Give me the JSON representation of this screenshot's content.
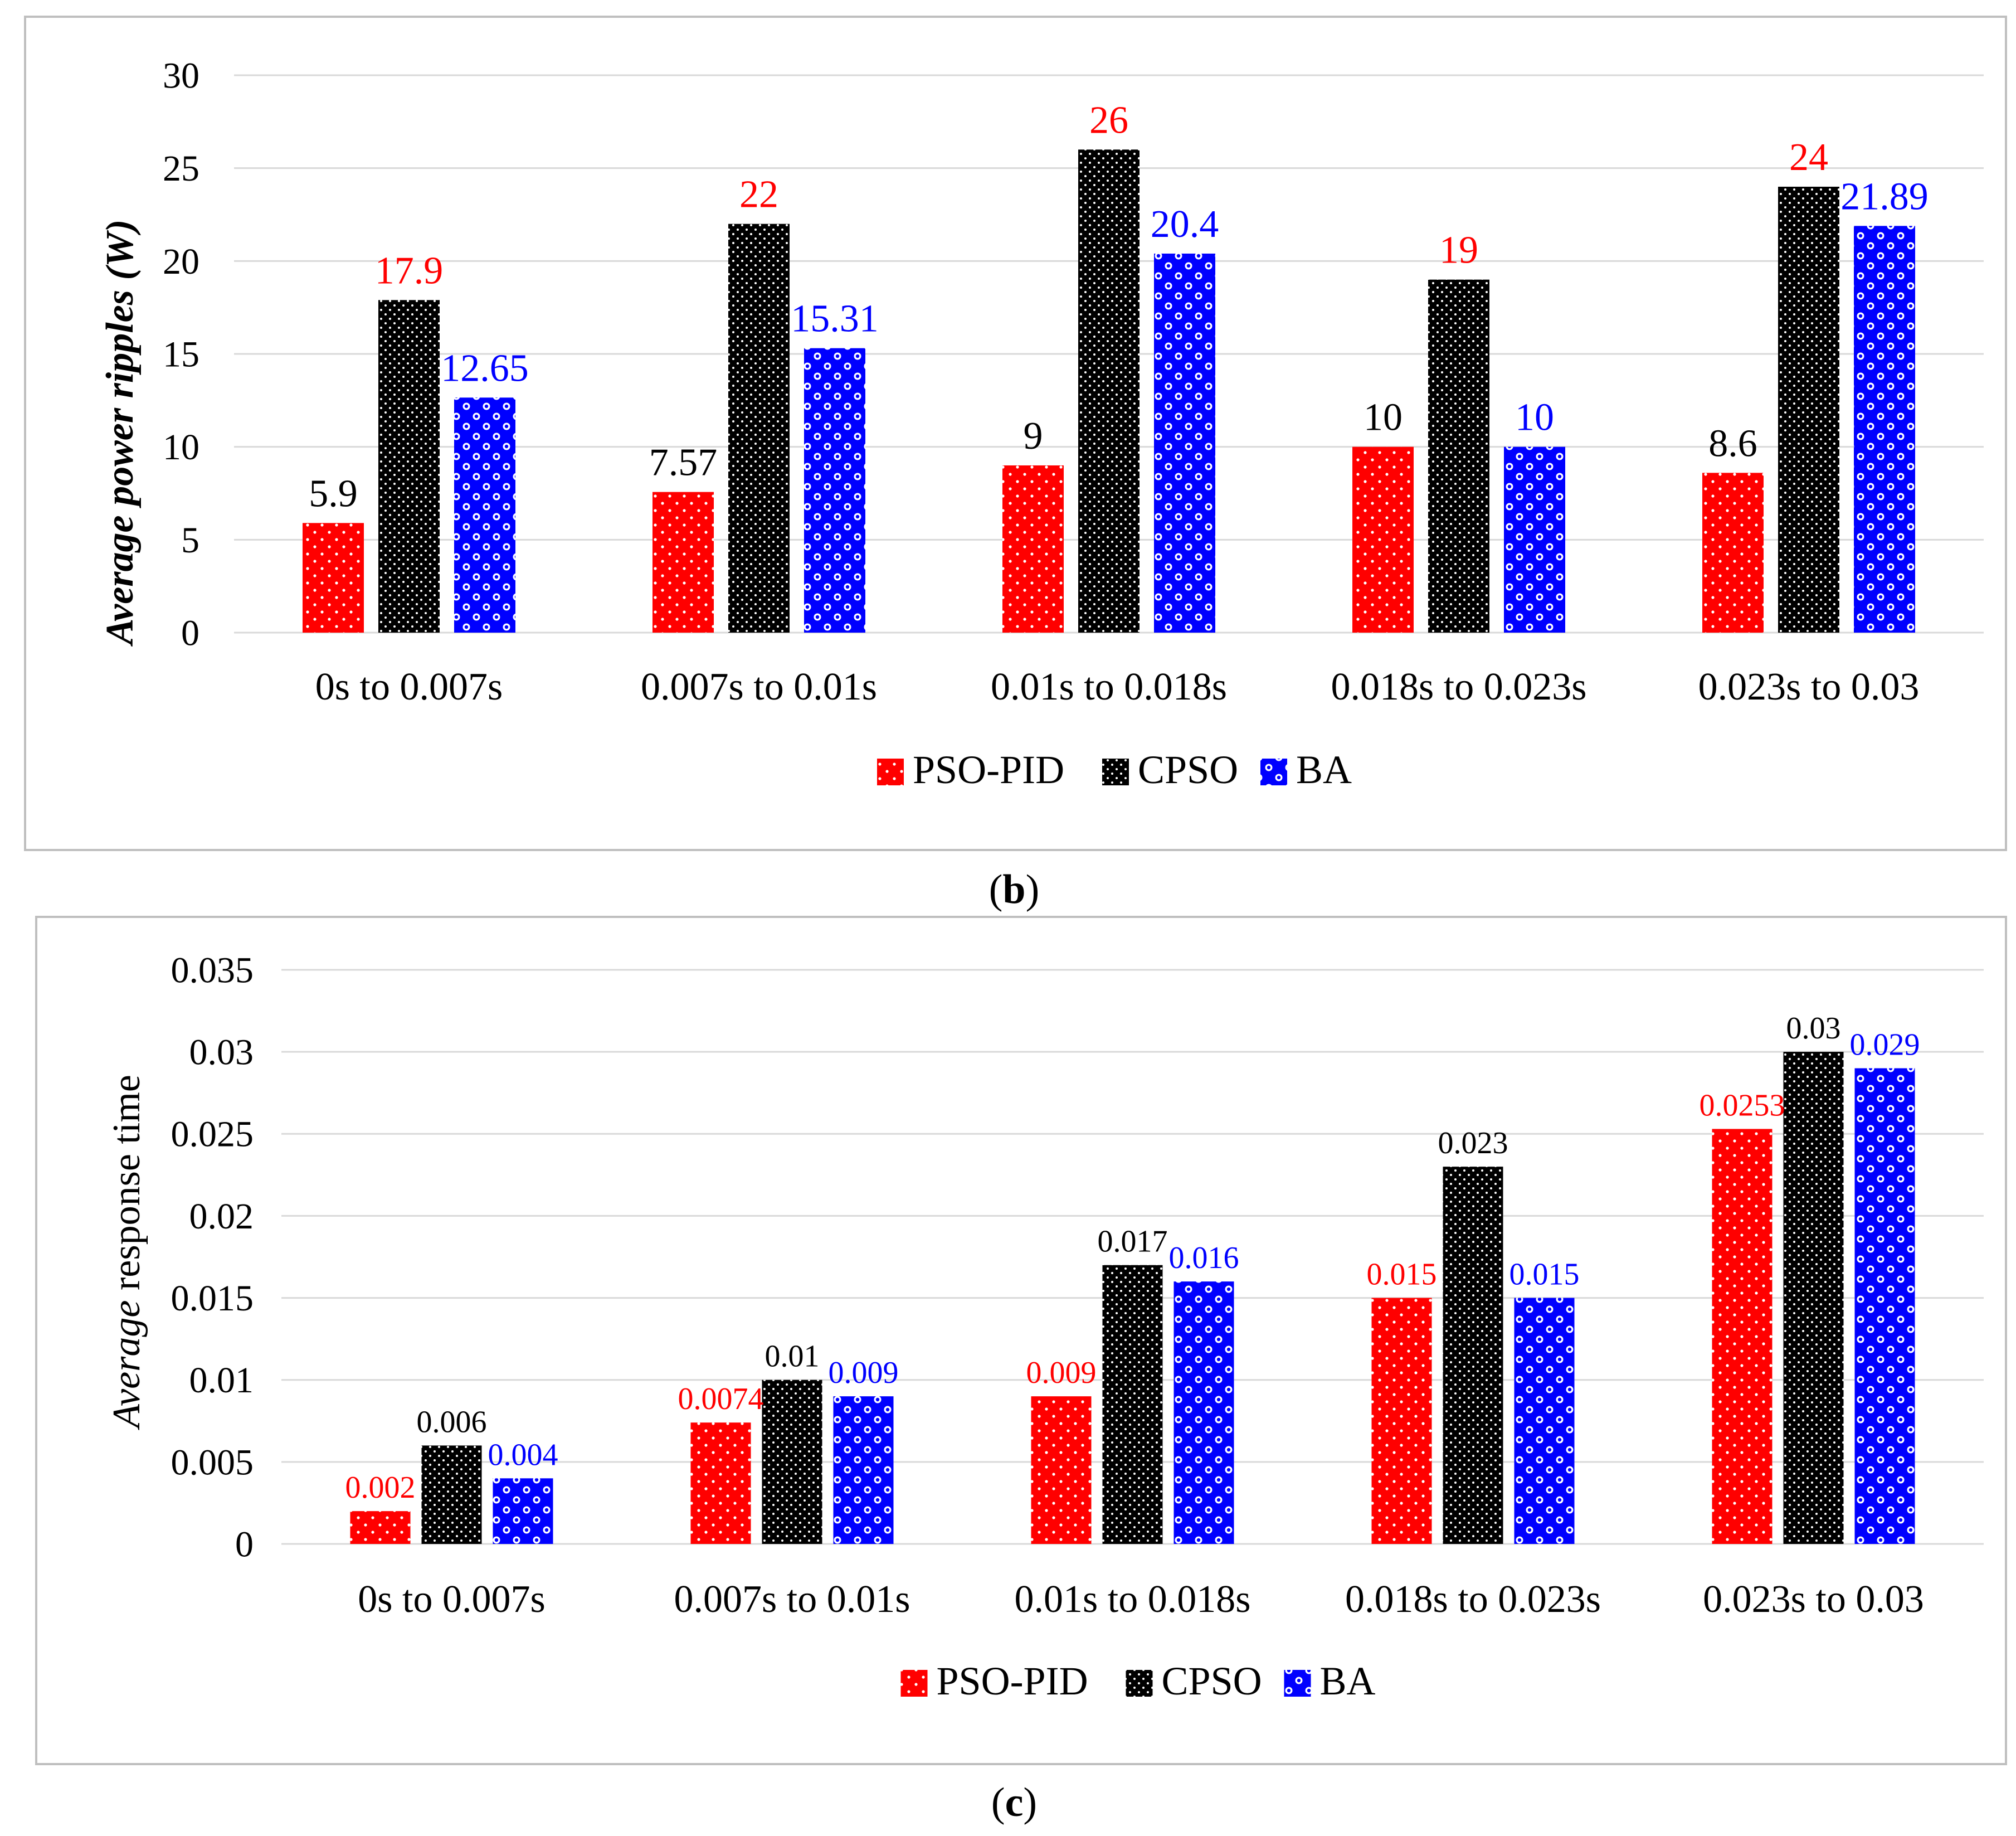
{
  "captions": {
    "b": "b",
    "c": "c"
  },
  "series_colors": {
    "PSO-PID": "#ff0000",
    "CPSO": "#000000",
    "BA": "#0000ff"
  },
  "chart_data": [
    {
      "id": "b",
      "type": "bar",
      "title": "",
      "xlabel": "",
      "ylabel": "Average power ripples (W)",
      "ylim": [
        0,
        30
      ],
      "yticks": [
        0,
        5,
        10,
        15,
        20,
        25,
        30
      ],
      "ytick_labels": [
        "0",
        "5",
        "10",
        "15",
        "20",
        "25",
        "30"
      ],
      "grid": true,
      "legend": "bottom-center",
      "categories": [
        "0s to 0.007s",
        "0.007s to 0.01s",
        "0.01s to 0.018s",
        "0.018s to 0.023s",
        "0.023s to 0.03"
      ],
      "series": [
        {
          "name": "PSO-PID",
          "values": [
            5.9,
            7.57,
            9,
            10,
            8.6
          ],
          "labels": [
            "5.9",
            "7.57",
            "9",
            "10",
            "8.6"
          ],
          "label_colors": [
            "#000000",
            "#000000",
            "#000000",
            "#000000",
            "#000000"
          ]
        },
        {
          "name": "CPSO",
          "values": [
            17.9,
            22,
            26,
            19,
            24
          ],
          "labels": [
            "17.9",
            "22",
            "26",
            "19",
            "24"
          ],
          "label_colors": [
            "#ff0000",
            "#ff0000",
            "#ff0000",
            "#ff0000",
            "#ff0000"
          ]
        },
        {
          "name": "BA",
          "values": [
            12.65,
            15.31,
            20.4,
            10,
            21.89
          ],
          "labels": [
            "12.65",
            "15.31",
            "20.4",
            "10",
            "21.89"
          ],
          "label_colors": [
            "#0000ff",
            "#0000ff",
            "#0000ff",
            "#0000ff",
            "#0000ff"
          ]
        }
      ]
    },
    {
      "id": "c",
      "type": "bar",
      "title": "",
      "xlabel": "",
      "ylabel": "Average response time",
      "ylim": [
        0,
        0.035
      ],
      "yticks": [
        0,
        0.005,
        0.01,
        0.015,
        0.02,
        0.025,
        0.03,
        0.035
      ],
      "ytick_labels": [
        "0",
        "0.005",
        "0.01",
        "0.015",
        "0.02",
        "0.025",
        "0.03",
        "0.035"
      ],
      "grid": true,
      "legend": "bottom-center",
      "categories": [
        "0s to 0.007s",
        "0.007s to 0.01s",
        "0.01s to 0.018s",
        "0.018s to 0.023s",
        "0.023s to 0.03"
      ],
      "series": [
        {
          "name": "PSO-PID",
          "values": [
            0.002,
            0.0074,
            0.009,
            0.015,
            0.0253
          ],
          "labels": [
            "0.002",
            "0.0074",
            "0.009",
            "0.015",
            "0.0253"
          ],
          "label_colors": [
            "#ff0000",
            "#ff0000",
            "#ff0000",
            "#ff0000",
            "#ff0000"
          ]
        },
        {
          "name": "CPSO",
          "values": [
            0.006,
            0.01,
            0.017,
            0.023,
            0.03
          ],
          "labels": [
            "0.006",
            "0.01",
            "0.017",
            "0.023",
            "0.03"
          ],
          "label_colors": [
            "#000000",
            "#000000",
            "#000000",
            "#000000",
            "#000000"
          ]
        },
        {
          "name": "BA",
          "values": [
            0.004,
            0.009,
            0.016,
            0.015,
            0.029
          ],
          "labels": [
            "0.004",
            "0.009",
            "0.016",
            "0.015",
            "0.029"
          ],
          "label_colors": [
            "#0000ff",
            "#0000ff",
            "#0000ff",
            "#0000ff",
            "#0000ff"
          ]
        }
      ]
    }
  ]
}
